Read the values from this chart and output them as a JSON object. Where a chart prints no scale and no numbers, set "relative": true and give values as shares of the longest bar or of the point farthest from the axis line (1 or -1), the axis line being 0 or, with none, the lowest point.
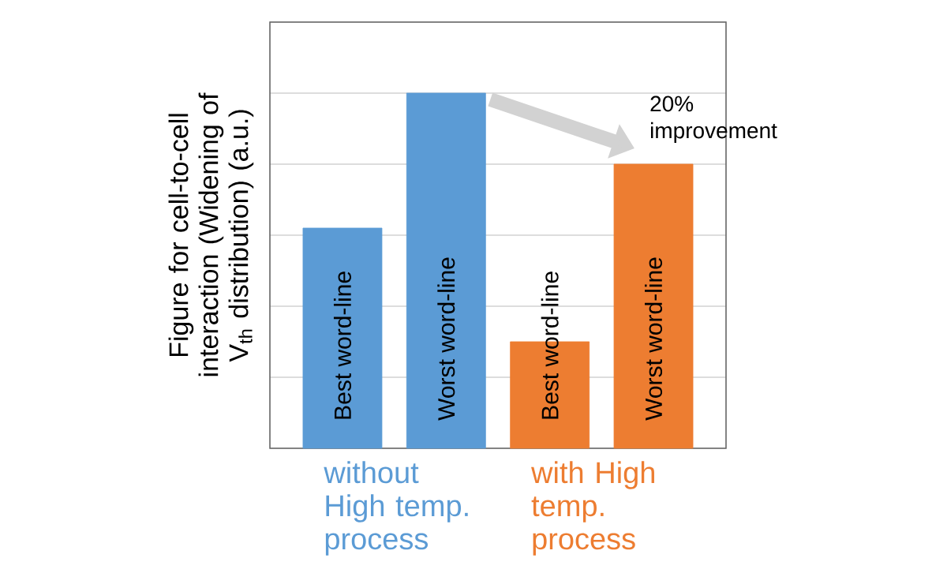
{
  "chart_data": {
    "type": "bar",
    "relative": true,
    "grid": "y",
    "ylabel": "Figure for cell-to-cell interaction (Widening of V$_{th}$ distribution) (a.u.)",
    "categories": [
      "Best word-line",
      "Worst word-line",
      "Best word-line",
      "Worst word-line"
    ],
    "series": [
      {
        "name": "without High temp. process",
        "color": "#5b9bd5",
        "values": [
          0.62,
          1,
          null,
          null
        ]
      },
      {
        "name": "with High temp. process",
        "color": "#ed7d31",
        "values": [
          null,
          null,
          0.3,
          0.8
        ]
      }
    ],
    "annotations": [
      "20% improvement"
    ]
  }
}
